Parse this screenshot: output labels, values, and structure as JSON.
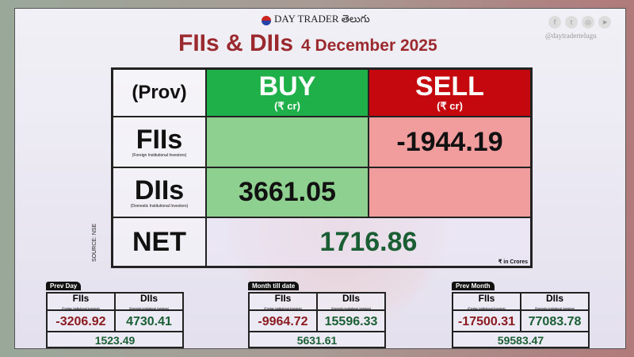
{
  "brand": "DAY TRADER తెలుగు",
  "social": {
    "icons": [
      "facebook-icon",
      "twitter-icon",
      "instagram-icon",
      "telegram-icon"
    ],
    "handle": "@daytradertelugu"
  },
  "title": {
    "main": "FIIs & DIIs",
    "date": "4 December 2025"
  },
  "table": {
    "corner": "(Prov)",
    "buy": "BUY",
    "sell": "SELL",
    "unit": "(₹ cr)",
    "fii": {
      "label": "FIIs",
      "sub": "(Foreign Institutional Investors)",
      "buy": "",
      "sell": "-1944.19"
    },
    "dii": {
      "label": "DIIs",
      "sub": "(Domestic Institutional Investors)",
      "buy": "3661.05",
      "sell": ""
    },
    "net": {
      "label": "NET",
      "value": "1716.86"
    },
    "note": "₹ in Crores",
    "source": "SOURCE: NSE"
  },
  "colors": {
    "buy": "#1fb04a",
    "sell": "#c4080e",
    "title": "#9b2a2e",
    "positive": "#1a5e33",
    "negative": "#8b1a1f"
  },
  "summary": [
    {
      "tab": "Prev Day",
      "fii_label": "FIIs",
      "fii_sub": "(Foreign institutional investors)",
      "dii_label": "DIIs",
      "dii_sub": "(Domestic institutional investors)",
      "fii": "-3206.92",
      "dii": "4730.41",
      "net": "1523.49"
    },
    {
      "tab": "Month till date",
      "fii_label": "FIIs",
      "fii_sub": "(Foreign institutional investors)",
      "dii_label": "DIIs",
      "dii_sub": "(Domestic institutional investors)",
      "fii": "-9964.72",
      "dii": "15596.33",
      "net": "5631.61"
    },
    {
      "tab": "Prev Month",
      "fii_label": "FIIs",
      "fii_sub": "(Foreign institutional investors)",
      "dii_label": "DIIs",
      "dii_sub": "(Domestic institutional investors)",
      "fii": "-17500.31",
      "dii": "77083.78",
      "net": "59583.47"
    }
  ]
}
